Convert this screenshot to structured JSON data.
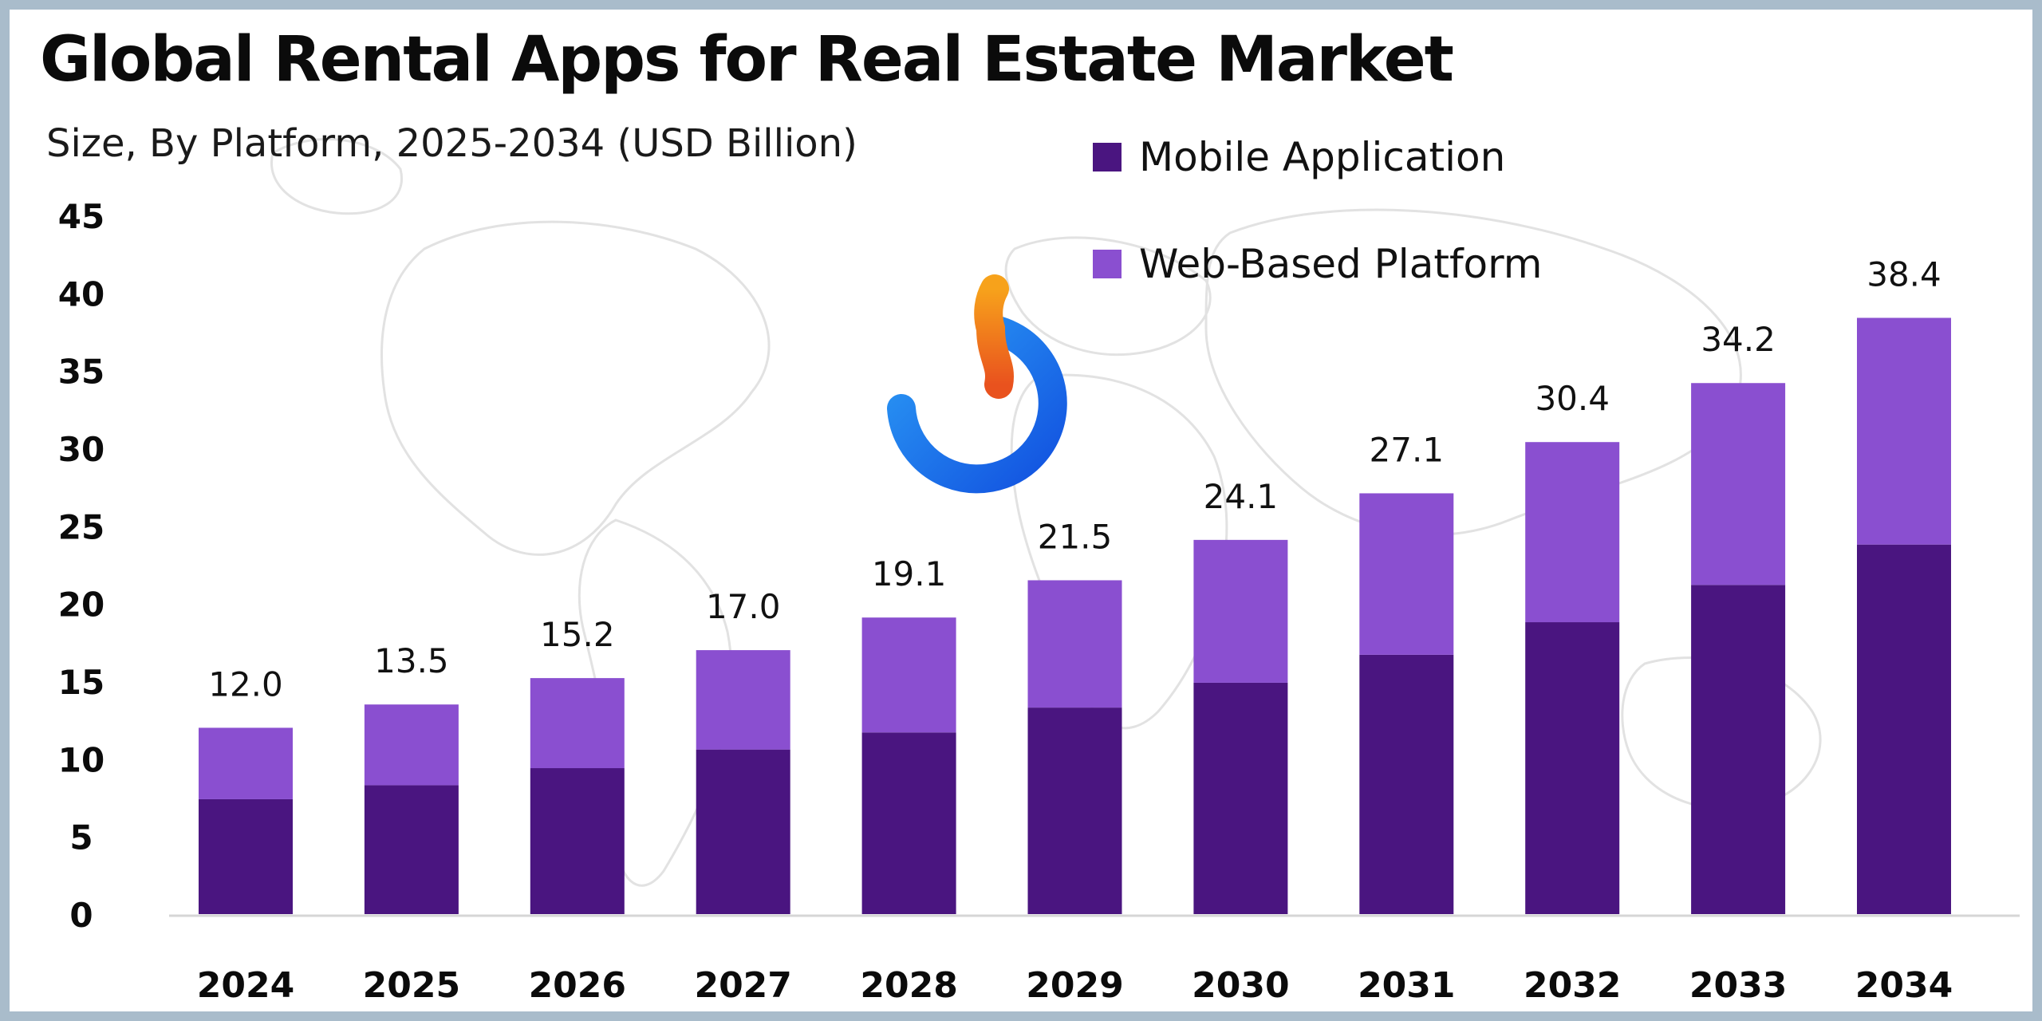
{
  "chart_data": {
    "type": "bar",
    "stacked": true,
    "title": "Global Rental Apps for Real Estate Market",
    "subtitle": "Size, By Platform, 2025-2034 (USD Billion)",
    "xlabel": "",
    "ylabel": "",
    "categories": [
      "2024",
      "2025",
      "2026",
      "2027",
      "2028",
      "2029",
      "2030",
      "2031",
      "2032",
      "2033",
      "2034"
    ],
    "series": [
      {
        "name": "Mobile Application",
        "color": "#4a1580",
        "values": [
          7.4,
          8.3,
          9.4,
          10.6,
          11.7,
          13.3,
          14.9,
          16.7,
          18.8,
          21.2,
          23.8
        ]
      },
      {
        "name": "Web-Based Platform",
        "color": "#8a4fd0",
        "values": [
          4.6,
          5.2,
          5.8,
          6.4,
          7.4,
          8.2,
          9.2,
          10.4,
          11.6,
          13.0,
          14.6
        ]
      }
    ],
    "totals": [
      "12.0",
      "13.5",
      "15.2",
      "17.0",
      "19.1",
      "21.5",
      "24.1",
      "27.1",
      "30.4",
      "34.2",
      "38.4"
    ],
    "ylim": [
      0,
      45
    ],
    "yticks": [
      0,
      5,
      10,
      15,
      20,
      25,
      30,
      35,
      40,
      45
    ],
    "grid": false,
    "legend_position": "top-center"
  },
  "logo": {
    "icon": "brand-swirl-icon",
    "colors": [
      "#f7a21b",
      "#e9521e",
      "#2b9bf5",
      "#1252e0"
    ]
  }
}
